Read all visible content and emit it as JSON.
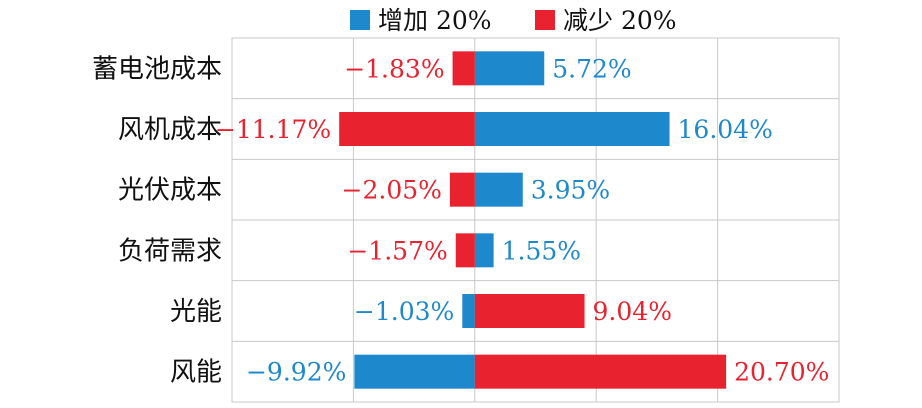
{
  "chart_data": {
    "type": "bar",
    "orientation": "horizontal",
    "stacked": "diverging",
    "categories": [
      "蓄电池成本",
      "风机成本",
      "光伏成本",
      "负荷需求",
      "光能",
      "风能"
    ],
    "series": [
      {
        "name": "增加 20%",
        "color": "#1e88cc",
        "values": [
          5.72,
          16.04,
          3.95,
          1.55,
          -1.03,
          -9.92
        ],
        "labels": [
          "5.72%",
          "16.04%",
          "3.95%",
          "1.55%",
          "−1.03%",
          "−9.92%"
        ]
      },
      {
        "name": "减少 20%",
        "color": "#e8222e",
        "values": [
          -1.83,
          -11.17,
          -2.05,
          -1.57,
          9.04,
          20.7
        ],
        "labels": [
          "−1.83%",
          "−11.17%",
          "−2.05%",
          "−1.57%",
          "9.04%",
          "20.70%"
        ]
      }
    ],
    "xlim": [
      -20,
      30
    ],
    "grid": true,
    "legend_position": "top"
  }
}
